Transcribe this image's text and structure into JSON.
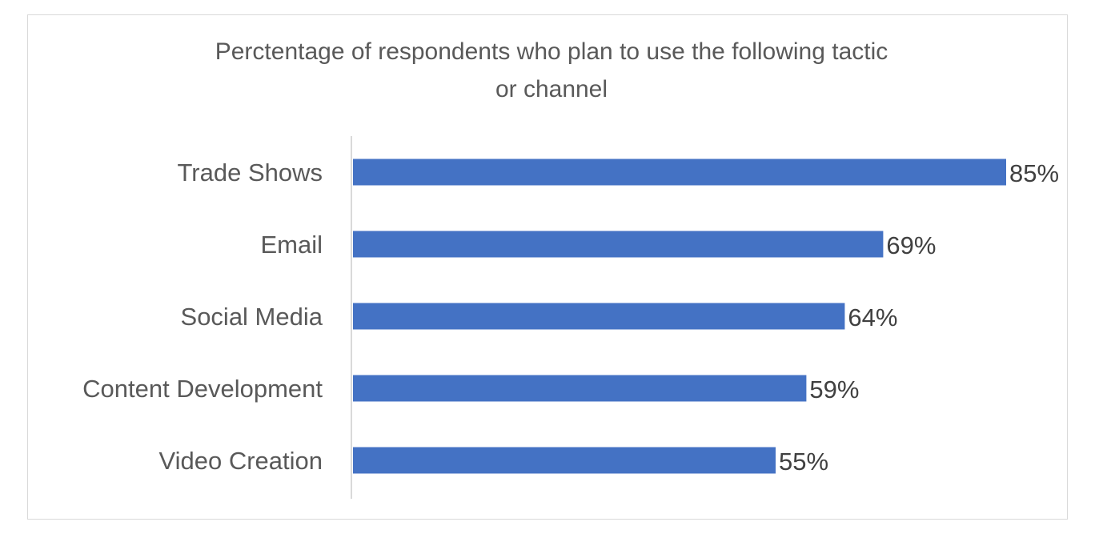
{
  "chart_data": {
    "type": "bar",
    "orientation": "horizontal",
    "title_lines": [
      "Perctentage of respondents who plan to use the following tactic",
      "or channel"
    ],
    "categories": [
      "Trade Shows",
      "Email",
      "Social Media",
      "Content Development",
      "Video Creation"
    ],
    "values": [
      85,
      69,
      64,
      59,
      55
    ],
    "value_labels": [
      "85%",
      "69%",
      "64%",
      "59%",
      "55%"
    ],
    "xlabel": "",
    "ylabel": "",
    "xlim": [
      0,
      100
    ],
    "grid": false,
    "bar_color": "#4472C4"
  }
}
